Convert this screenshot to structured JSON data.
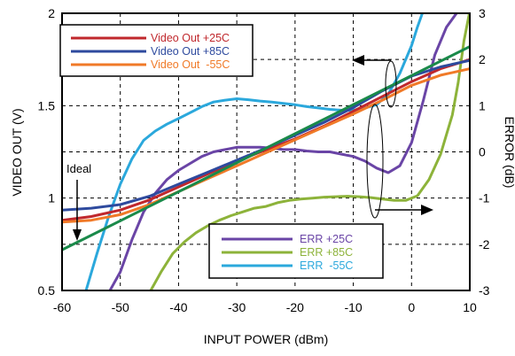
{
  "chart_data": {
    "type": "line",
    "xlabel": "INPUT POWER (dBm)",
    "ylabel_left": "VIDEO OUT (V)",
    "ylabel_right": "ERROR  (dB)",
    "xlim": [
      -60,
      10
    ],
    "ylim_left": [
      0.5,
      2
    ],
    "ylim_right": [
      -3,
      3
    ],
    "x_ticks": [
      "-60",
      "-50",
      "-40",
      "-30",
      "-20",
      "-10",
      "0",
      "10"
    ],
    "y_left_ticks": [
      "0.5",
      "1",
      "1.5",
      "2"
    ],
    "y_right_ticks": [
      "-3",
      "-2",
      "-1",
      "0",
      "1",
      "2",
      "3"
    ],
    "grid": true,
    "annotation": "Ideal",
    "video_series": [
      {
        "name": "Video Out +25C",
        "color": "#c0282d",
        "axis": "left",
        "points": [
          [
            -60,
            0.88
          ],
          [
            -55,
            0.9
          ],
          [
            -50,
            0.935
          ],
          [
            -45,
            0.99
          ],
          [
            -40,
            1.06
          ],
          [
            -35,
            1.13
          ],
          [
            -30,
            1.2
          ],
          [
            -25,
            1.26
          ],
          [
            -20,
            1.32
          ],
          [
            -15,
            1.39
          ],
          [
            -10,
            1.47
          ],
          [
            -5,
            1.55
          ],
          [
            0,
            1.63
          ],
          [
            5,
            1.7
          ],
          [
            10,
            1.75
          ]
        ]
      },
      {
        "name": "Video Out +85C",
        "color": "#2e4a9e",
        "axis": "left",
        "points": [
          [
            -60,
            0.935
          ],
          [
            -55,
            0.945
          ],
          [
            -50,
            0.965
          ],
          [
            -45,
            1.01
          ],
          [
            -40,
            1.075
          ],
          [
            -35,
            1.14
          ],
          [
            -30,
            1.205
          ],
          [
            -25,
            1.27
          ],
          [
            -20,
            1.34
          ],
          [
            -15,
            1.41
          ],
          [
            -10,
            1.49
          ],
          [
            -5,
            1.58
          ],
          [
            0,
            1.66
          ],
          [
            5,
            1.71
          ],
          [
            10,
            1.745
          ]
        ]
      },
      {
        "name": "Video Out  -55C",
        "color": "#f07a28",
        "axis": "left",
        "points": [
          [
            -60,
            0.87
          ],
          [
            -55,
            0.88
          ],
          [
            -50,
            0.91
          ],
          [
            -45,
            0.965
          ],
          [
            -40,
            1.035
          ],
          [
            -35,
            1.105
          ],
          [
            -30,
            1.175
          ],
          [
            -25,
            1.245
          ],
          [
            -20,
            1.315
          ],
          [
            -15,
            1.385
          ],
          [
            -10,
            1.455
          ],
          [
            -5,
            1.53
          ],
          [
            0,
            1.61
          ],
          [
            5,
            1.665
          ],
          [
            10,
            1.7
          ]
        ]
      },
      {
        "name": "Ideal",
        "color": "#1a8a4a",
        "axis": "left",
        "points": [
          [
            -60,
            0.72
          ],
          [
            10,
            1.82
          ]
        ]
      }
    ],
    "error_series": [
      {
        "name": "ERR +25C",
        "color": "#6a45a6",
        "axis": "right",
        "points": [
          [
            -52,
            -3.05
          ],
          [
            -50,
            -2.6
          ],
          [
            -48,
            -1.9
          ],
          [
            -46,
            -1.3
          ],
          [
            -44,
            -0.9
          ],
          [
            -42,
            -0.6
          ],
          [
            -40,
            -0.4
          ],
          [
            -38,
            -0.25
          ],
          [
            -36,
            -0.1
          ],
          [
            -34,
            0.0
          ],
          [
            -32,
            0.05
          ],
          [
            -30,
            0.1
          ],
          [
            -28,
            0.1
          ],
          [
            -26,
            0.1
          ],
          [
            -24,
            0.08
          ],
          [
            -22,
            0.05
          ],
          [
            -20,
            0.05
          ],
          [
            -18,
            0.02
          ],
          [
            -16,
            0.0
          ],
          [
            -14,
            0.0
          ],
          [
            -12,
            -0.05
          ],
          [
            -10,
            -0.1
          ],
          [
            -8,
            -0.2
          ],
          [
            -6,
            -0.35
          ],
          [
            -4,
            -0.45
          ],
          [
            -2,
            -0.3
          ],
          [
            0,
            0.2
          ],
          [
            2,
            1.1
          ],
          [
            4,
            2.1
          ],
          [
            6,
            2.7
          ],
          [
            8,
            3.05
          ]
        ]
      },
      {
        "name": "ERR +85C",
        "color": "#8db33a",
        "axis": "right",
        "points": [
          [
            -45,
            -3.05
          ],
          [
            -43,
            -2.6
          ],
          [
            -41,
            -2.2
          ],
          [
            -39,
            -1.95
          ],
          [
            -37,
            -1.75
          ],
          [
            -35,
            -1.6
          ],
          [
            -33,
            -1.48
          ],
          [
            -31,
            -1.38
          ],
          [
            -29,
            -1.3
          ],
          [
            -27,
            -1.22
          ],
          [
            -25,
            -1.18
          ],
          [
            -23,
            -1.1
          ],
          [
            -21,
            -1.05
          ],
          [
            -19,
            -1.02
          ],
          [
            -17,
            -1.0
          ],
          [
            -15,
            -0.98
          ],
          [
            -13,
            -0.97
          ],
          [
            -11,
            -0.96
          ],
          [
            -9,
            -0.97
          ],
          [
            -7,
            -0.99
          ],
          [
            -5,
            -1.02
          ],
          [
            -3,
            -1.05
          ],
          [
            -1,
            -1.05
          ],
          [
            1,
            -0.95
          ],
          [
            3,
            -0.6
          ],
          [
            5,
            -0.05
          ],
          [
            7,
            0.8
          ],
          [
            8,
            1.5
          ],
          [
            9,
            2.4
          ],
          [
            10,
            3.05
          ]
        ]
      },
      {
        "name": "ERR  -55C",
        "color": "#2ba8dc",
        "axis": "right",
        "points": [
          [
            -56,
            -3.05
          ],
          [
            -54,
            -2.2
          ],
          [
            -52,
            -1.4
          ],
          [
            -50,
            -0.7
          ],
          [
            -48,
            -0.15
          ],
          [
            -46,
            0.25
          ],
          [
            -44,
            0.45
          ],
          [
            -42,
            0.6
          ],
          [
            -40,
            0.72
          ],
          [
            -38,
            0.85
          ],
          [
            -36,
            0.98
          ],
          [
            -34,
            1.08
          ],
          [
            -32,
            1.12
          ],
          [
            -30,
            1.15
          ],
          [
            -28,
            1.13
          ],
          [
            -26,
            1.1
          ],
          [
            -24,
            1.08
          ],
          [
            -22,
            1.05
          ],
          [
            -20,
            1.02
          ],
          [
            -18,
            0.98
          ],
          [
            -16,
            0.95
          ],
          [
            -14,
            0.92
          ],
          [
            -12,
            0.9
          ],
          [
            -10,
            0.9
          ],
          [
            -8,
            0.95
          ],
          [
            -6,
            1.02
          ],
          [
            -4,
            1.25
          ],
          [
            -2,
            1.7
          ],
          [
            0,
            2.3
          ],
          [
            1,
            2.7
          ],
          [
            2,
            3.05
          ]
        ]
      }
    ],
    "legend_top": [
      "Video Out +25C",
      "Video Out +85C",
      "Video Out  -55C"
    ],
    "legend_bottom": [
      "ERR +25C",
      "ERR +85C",
      "ERR  -55C"
    ]
  }
}
